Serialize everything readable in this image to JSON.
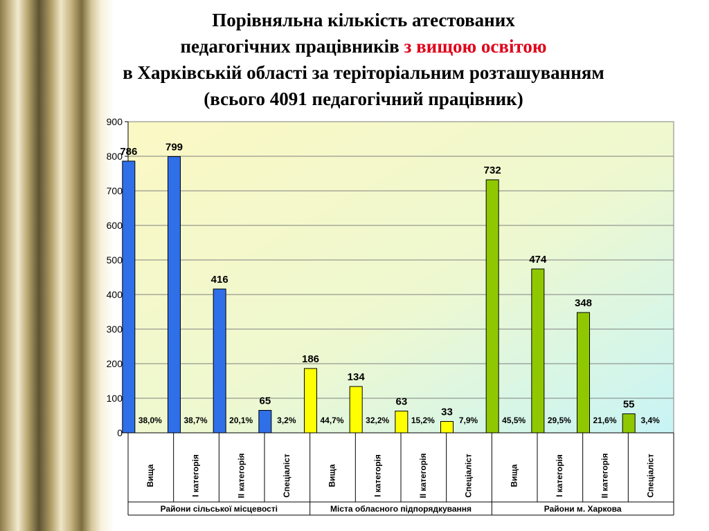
{
  "title": {
    "line1": "Порівняльна кількість атестованих",
    "line2_pre": "педагогічних працівників ",
    "line2_highlight": "з вищою освітою",
    "line3": "в Харківській області за теріторіальним розташуванням",
    "line4": "(всього 4091 педагогічний працівник)"
  },
  "colors": {
    "highlight": "#e0001a",
    "group_1": "#2f6fe8",
    "group_2": "#ffff00",
    "group_3": "#8fc800"
  },
  "chart_data": {
    "type": "bar",
    "ylim": [
      0,
      900
    ],
    "yticks": [
      0,
      100,
      200,
      300,
      400,
      500,
      600,
      700,
      800,
      900
    ],
    "grid": true,
    "groups": [
      {
        "name": "Райони сільської місцевості",
        "color": "#2f6fe8",
        "categories": [
          "Вища",
          "I категорія",
          "II категорія",
          "Спеціаліст"
        ],
        "values": [
          786,
          799,
          416,
          65
        ],
        "percents": [
          "38,0%",
          "38,7%",
          "20,1%",
          "3,2%"
        ]
      },
      {
        "name": "Міста обласного підпорядкування",
        "color": "#ffff00",
        "categories": [
          "Вища",
          "I категорія",
          "II категорія",
          "Спеціаліст"
        ],
        "values": [
          186,
          134,
          63,
          33
        ],
        "percents": [
          "44,7%",
          "32,2%",
          "15,2%",
          "7,9%"
        ]
      },
      {
        "name": "Райони м. Харкова",
        "color": "#8fc800",
        "categories": [
          "Вища",
          "I категорія",
          "II категорія",
          "Спеціаліст"
        ],
        "values": [
          732,
          474,
          348,
          55
        ],
        "percents": [
          "45,5%",
          "29,5%",
          "21,6%",
          "3,4%"
        ]
      }
    ]
  }
}
